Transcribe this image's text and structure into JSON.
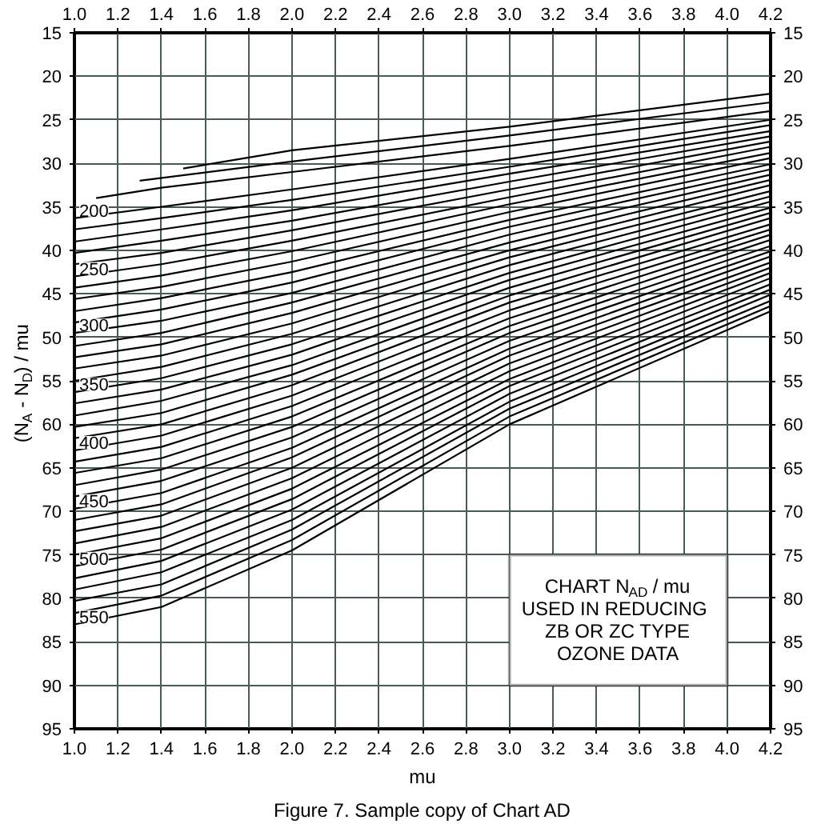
{
  "chart_data": {
    "type": "line",
    "title": "Figure 7. Sample copy of Chart AD",
    "xlabel": "mu",
    "ylabel": "(N$_{A}$ - N$_{D}$) / mu",
    "annotations": [
      "CHART N$_{AD}$ / mu\nUSED IN REDUCING\nZB OR ZC TYPE\nOZONE DATA"
    ],
    "x": [
      1.0,
      1.4,
      2.0,
      3.0,
      4.2
    ],
    "xlim": [
      1.0,
      4.2
    ],
    "ylim": [
      95,
      15
    ],
    "xticks": [
      {
        "value": 1.0,
        "label": "1.0"
      },
      1.2,
      1.4,
      1.6,
      1.8,
      {
        "value": 2.0,
        "label": "2.0"
      },
      2.2,
      2.4,
      2.6,
      2.8,
      {
        "value": 3.0,
        "label": "3.0"
      },
      3.2,
      3.4,
      3.6,
      3.8,
      {
        "value": 4.0,
        "label": "4.0"
      },
      4.2
    ],
    "x2lim": [
      1.0,
      4.2
    ],
    "x2ticks": [
      {
        "value": 1.0,
        "label": "1.0"
      },
      1.2,
      1.4,
      1.6,
      1.8,
      {
        "value": 2.0,
        "label": "2.0"
      },
      2.2,
      2.4,
      2.6,
      2.8,
      {
        "value": 3.0,
        "label": "3.0"
      },
      3.2,
      3.4,
      3.6,
      3.8,
      {
        "value": 4.0,
        "label": "4.0"
      },
      4.2
    ],
    "yticks": [
      15,
      20,
      25,
      30,
      35,
      40,
      45,
      50,
      55,
      60,
      65,
      70,
      75,
      80,
      85,
      90,
      95
    ],
    "y2lim": [
      95,
      15
    ],
    "y2ticks": [
      15,
      20,
      25,
      30,
      35,
      40,
      45,
      50,
      55,
      60,
      65,
      70,
      75,
      80,
      85,
      90,
      95
    ],
    "grid": true,
    "legend": "left",
    "marker": "none",
    "line_style": "solid",
    "series": [
      {
        "color": "#000000",
        "x": [
          1.5,
          2.0,
          3.0,
          4.2
        ],
        "values": [
          30.6,
          28.5,
          25.8,
          22.0
        ]
      },
      {
        "color": "#000000",
        "x": [
          1.3,
          2.0,
          3.0,
          4.2
        ],
        "values": [
          32.0,
          29.8,
          26.8,
          23.0
        ]
      },
      {
        "color": "#000000",
        "x": [
          1.1,
          1.4,
          2.0,
          3.0,
          4.2
        ],
        "values": [
          34.0,
          32.8,
          31.0,
          28.0,
          24.0
        ]
      },
      {
        "name": "200",
        "color": "#000000",
        "values": [
          36.3,
          35.0,
          33.0,
          29.5,
          25.0
        ]
      },
      {
        "color": "#000000",
        "values": [
          37.6,
          36.3,
          34.2,
          30.4,
          25.6
        ]
      },
      {
        "color": "#000000",
        "values": [
          39.0,
          37.6,
          35.4,
          31.2,
          26.3
        ]
      },
      {
        "color": "#000000",
        "values": [
          40.3,
          38.9,
          36.6,
          32.1,
          26.9
        ]
      },
      {
        "color": "#000000",
        "values": [
          41.6,
          40.3,
          37.7,
          33.0,
          27.5
        ]
      },
      {
        "name": "250",
        "color": "#000000",
        "values": [
          43.0,
          41.6,
          38.9,
          33.9,
          28.1
        ]
      },
      {
        "color": "#000000",
        "values": [
          44.3,
          42.9,
          40.1,
          34.7,
          28.8
        ]
      },
      {
        "color": "#000000",
        "values": [
          45.6,
          44.2,
          41.3,
          35.6,
          29.4
        ]
      },
      {
        "color": "#000000",
        "values": [
          47.0,
          45.5,
          42.5,
          36.5,
          30.1
        ]
      },
      {
        "color": "#000000",
        "values": [
          48.3,
          46.8,
          43.7,
          37.3,
          30.7
        ]
      },
      {
        "name": "300",
        "color": "#000000",
        "values": [
          49.5,
          48.1,
          44.9,
          38.2,
          31.3
        ]
      },
      {
        "color": "#000000",
        "values": [
          51.0,
          49.5,
          46.0,
          39.1,
          31.9
        ]
      },
      {
        "color": "#000000",
        "values": [
          52.3,
          50.8,
          47.2,
          40.0,
          32.5
        ]
      },
      {
        "color": "#000000",
        "values": [
          53.6,
          52.1,
          48.4,
          40.8,
          33.2
        ]
      },
      {
        "color": "#000000",
        "values": [
          55.0,
          53.4,
          49.6,
          41.7,
          33.8
        ]
      },
      {
        "name": "350",
        "color": "#000000",
        "values": [
          56.3,
          54.7,
          50.8,
          42.6,
          34.4
        ]
      },
      {
        "color": "#000000",
        "values": [
          57.6,
          56.0,
          52.0,
          43.4,
          35.1
        ]
      },
      {
        "color": "#000000",
        "values": [
          59.0,
          57.3,
          53.2,
          44.3,
          35.7
        ]
      },
      {
        "color": "#000000",
        "values": [
          60.3,
          58.7,
          54.3,
          45.2,
          36.3
        ]
      },
      {
        "color": "#000000",
        "values": [
          61.6,
          60.0,
          55.5,
          46.0,
          37.0
        ]
      },
      {
        "name": "400",
        "color": "#000000",
        "values": [
          63.0,
          61.3,
          56.7,
          46.9,
          37.6
        ]
      },
      {
        "color": "#000000",
        "values": [
          64.3,
          62.6,
          57.9,
          47.8,
          38.2
        ]
      },
      {
        "color": "#000000",
        "values": [
          65.6,
          63.9,
          59.1,
          48.7,
          38.8
        ]
      },
      {
        "color": "#000000",
        "values": [
          67.0,
          65.2,
          60.3,
          49.5,
          39.5
        ]
      },
      {
        "color": "#000000",
        "values": [
          68.3,
          66.5,
          61.5,
          50.4,
          40.1
        ]
      },
      {
        "name": "450",
        "color": "#000000",
        "values": [
          69.7,
          67.9,
          62.7,
          51.3,
          40.7
        ]
      },
      {
        "color": "#000000",
        "values": [
          71.0,
          69.2,
          63.8,
          52.1,
          41.4
        ]
      },
      {
        "color": "#000000",
        "values": [
          72.3,
          70.5,
          65.0,
          53.0,
          42.0
        ]
      },
      {
        "color": "#000000",
        "values": [
          73.7,
          71.8,
          66.2,
          53.9,
          42.6
        ]
      },
      {
        "color": "#000000",
        "values": [
          75.0,
          73.1,
          67.4,
          54.8,
          43.2
        ]
      },
      {
        "name": "500",
        "color": "#000000",
        "values": [
          76.3,
          74.4,
          68.6,
          55.6,
          43.9
        ]
      },
      {
        "color": "#000000",
        "values": [
          77.7,
          75.7,
          69.8,
          56.5,
          44.5
        ]
      },
      {
        "color": "#000000",
        "values": [
          79.0,
          77.0,
          71.0,
          57.4,
          45.1
        ]
      },
      {
        "color": "#000000",
        "values": [
          80.3,
          78.4,
          72.1,
          58.2,
          45.8
        ]
      },
      {
        "color": "#000000",
        "values": [
          81.7,
          79.7,
          73.3,
          59.1,
          46.4
        ]
      },
      {
        "name": "550",
        "color": "#000000",
        "values": [
          83.0,
          81.0,
          74.5,
          60.0,
          47.0
        ]
      }
    ]
  }
}
